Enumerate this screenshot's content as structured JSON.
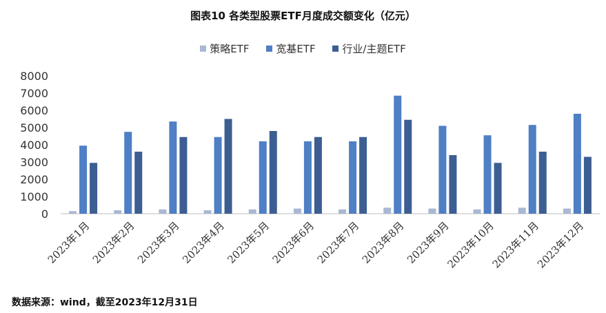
{
  "title": "图表10  各类型股票ETF月度成交额变化（亿元）",
  "source": "数据来源：wind，截至2023年12月31日",
  "colors": {
    "strategy": "#a9b8d3",
    "broad": "#4f7fc4",
    "industry": "#3d5e93",
    "axis": "#bfbfbf",
    "tick_text": "#333333"
  },
  "chart_data": {
    "type": "bar",
    "title": "图表10  各类型股票ETF月度成交额变化（亿元）",
    "categories": [
      "2023年1月",
      "2023年2月",
      "2023年3月",
      "2023年4月",
      "2023年5月",
      "2023年6月",
      "2023年7月",
      "2023年8月",
      "2023年9月",
      "2023年10月",
      "2023年11月",
      "2023年12月"
    ],
    "series": [
      {
        "name": "策略ETF",
        "color": "#a9b8d3",
        "values": [
          150,
          200,
          250,
          200,
          250,
          300,
          250,
          350,
          300,
          250,
          350,
          300
        ]
      },
      {
        "name": "宽基ETF",
        "color": "#4f7fc4",
        "values": [
          3950,
          4750,
          5350,
          4450,
          4200,
          4200,
          4200,
          6850,
          5100,
          4550,
          5150,
          5800
        ]
      },
      {
        "name": "行业/主题ETF",
        "color": "#3d5e93",
        "values": [
          2950,
          3600,
          4450,
          5500,
          4800,
          4450,
          4450,
          5450,
          3400,
          2950,
          3600,
          3300
        ]
      }
    ],
    "yticks": [
      "0",
      "1000",
      "2000",
      "3000",
      "4000",
      "5000",
      "6000",
      "7000",
      "8000"
    ],
    "ylim": [
      0,
      8000
    ],
    "xlabel": "",
    "ylabel": "",
    "legend": "top-center",
    "grid": false
  }
}
